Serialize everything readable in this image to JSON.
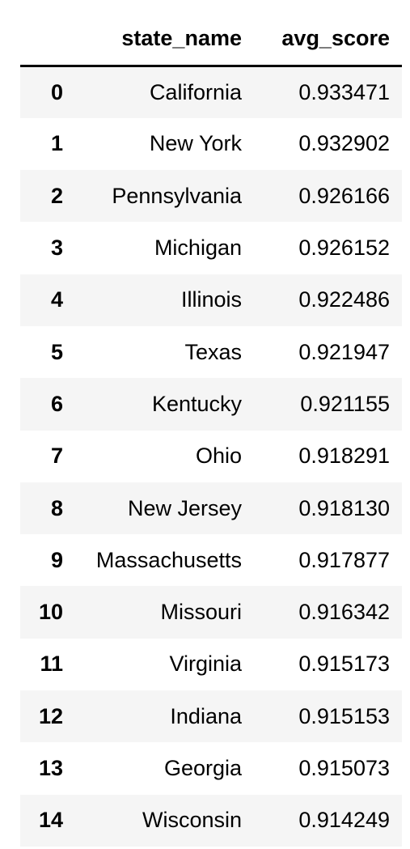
{
  "table": {
    "index_header": "",
    "columns": [
      "state_name",
      "avg_score"
    ],
    "rows": [
      {
        "index": "0",
        "state_name": "California",
        "avg_score": "0.933471"
      },
      {
        "index": "1",
        "state_name": "New York",
        "avg_score": "0.932902"
      },
      {
        "index": "2",
        "state_name": "Pennsylvania",
        "avg_score": "0.926166"
      },
      {
        "index": "3",
        "state_name": "Michigan",
        "avg_score": "0.926152"
      },
      {
        "index": "4",
        "state_name": "Illinois",
        "avg_score": "0.922486"
      },
      {
        "index": "5",
        "state_name": "Texas",
        "avg_score": "0.921947"
      },
      {
        "index": "6",
        "state_name": "Kentucky",
        "avg_score": "0.921155"
      },
      {
        "index": "7",
        "state_name": "Ohio",
        "avg_score": "0.918291"
      },
      {
        "index": "8",
        "state_name": "New Jersey",
        "avg_score": "0.918130"
      },
      {
        "index": "9",
        "state_name": "Massachusetts",
        "avg_score": "0.917877"
      },
      {
        "index": "10",
        "state_name": "Missouri",
        "avg_score": "0.916342"
      },
      {
        "index": "11",
        "state_name": "Virginia",
        "avg_score": "0.915173"
      },
      {
        "index": "12",
        "state_name": "Indiana",
        "avg_score": "0.915153"
      },
      {
        "index": "13",
        "state_name": "Georgia",
        "avg_score": "0.915073"
      },
      {
        "index": "14",
        "state_name": "Wisconsin",
        "avg_score": "0.914249"
      }
    ]
  },
  "colors": {
    "stripe": "#f5f5f5",
    "background": "#ffffff",
    "text": "#000000",
    "header_rule": "#000000"
  }
}
